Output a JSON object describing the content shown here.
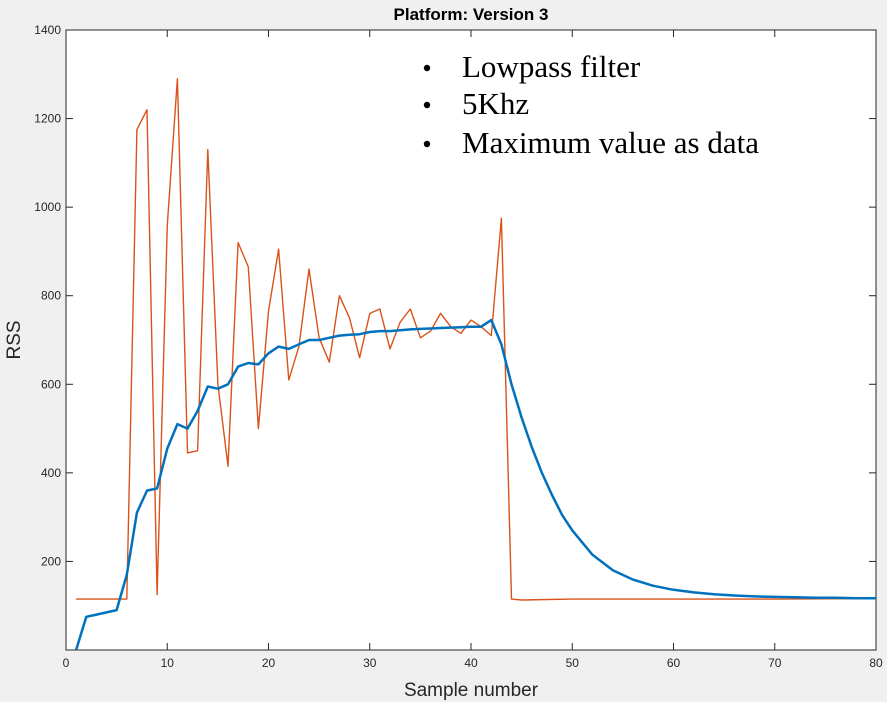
{
  "chart_data": {
    "type": "line",
    "title": "Platform: Version 3",
    "xlabel": "Sample number",
    "ylabel": "RSS",
    "xlim": [
      0,
      80
    ],
    "ylim": [
      0,
      1400
    ],
    "xticks": [
      0,
      10,
      20,
      30,
      40,
      50,
      60,
      70,
      80
    ],
    "yticks": [
      200,
      400,
      600,
      800,
      1000,
      1200,
      1400
    ],
    "grid": false,
    "annotations": [
      "Lowpass filter",
      "5Khz",
      "Maximum value as data"
    ],
    "series": [
      {
        "color": "#D95319",
        "x": [
          1,
          2,
          3,
          4,
          5,
          6,
          7,
          8,
          9,
          10,
          11,
          12,
          13,
          14,
          15,
          16,
          17,
          18,
          19,
          20,
          21,
          22,
          23,
          24,
          25,
          26,
          27,
          28,
          29,
          30,
          31,
          32,
          33,
          34,
          35,
          36,
          37,
          38,
          39,
          40,
          41,
          42,
          43,
          44,
          45,
          50,
          60,
          70,
          80
        ],
        "values": [
          115,
          115,
          115,
          115,
          115,
          115,
          1175,
          1220,
          125,
          960,
          1290,
          445,
          450,
          1130,
          600,
          415,
          920,
          865,
          500,
          765,
          905,
          610,
          685,
          860,
          705,
          650,
          800,
          750,
          660,
          760,
          770,
          680,
          740,
          770,
          705,
          720,
          760,
          730,
          715,
          745,
          730,
          710,
          975,
          115,
          113,
          115,
          115,
          115,
          116
        ]
      },
      {
        "color": "#0072BD",
        "x": [
          1,
          2,
          3,
          4,
          5,
          6,
          7,
          8,
          9,
          10,
          11,
          12,
          13,
          14,
          15,
          16,
          17,
          18,
          19,
          20,
          21,
          22,
          23,
          24,
          25,
          26,
          27,
          28,
          29,
          30,
          31,
          32,
          33,
          34,
          35,
          36,
          37,
          38,
          39,
          40,
          41,
          42,
          43,
          44,
          45,
          46,
          47,
          48,
          49,
          50,
          52,
          54,
          56,
          58,
          60,
          62,
          64,
          66,
          68,
          70,
          72,
          74,
          76,
          78,
          80
        ],
        "values": [
          0,
          75,
          80,
          85,
          90,
          170,
          310,
          360,
          365,
          455,
          510,
          500,
          540,
          595,
          590,
          600,
          640,
          648,
          645,
          670,
          685,
          680,
          690,
          700,
          700,
          705,
          710,
          712,
          713,
          718,
          720,
          720,
          722,
          724,
          725,
          726,
          727,
          728,
          729,
          730,
          730,
          745,
          690,
          600,
          525,
          458,
          400,
          350,
          305,
          270,
          215,
          180,
          159,
          145,
          136,
          130,
          126,
          123,
          121,
          120,
          119,
          118,
          118,
          117,
          117
        ]
      }
    ]
  }
}
